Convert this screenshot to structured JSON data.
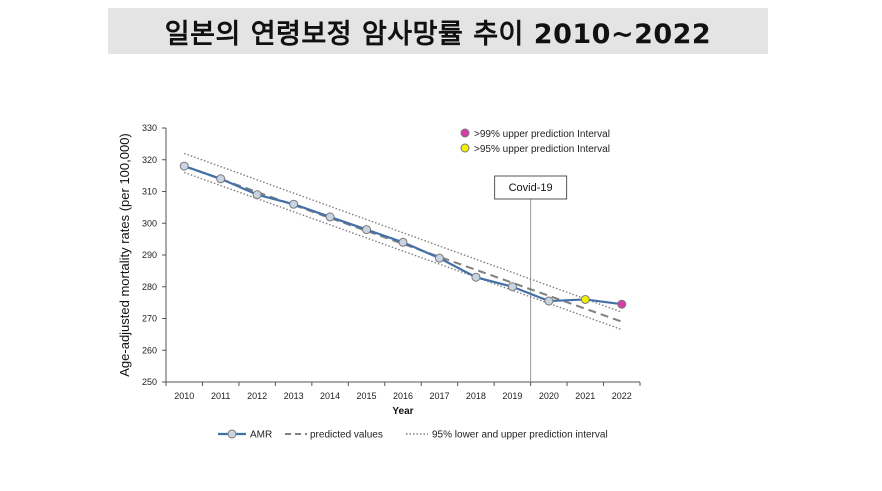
{
  "title": "일본의 연령보정 암사망률 추이 2010~2022",
  "chart_data": {
    "type": "line",
    "xlabel": "Year",
    "ylabel": "Age-adjusted mortality rates (per 100,000)",
    "x": [
      2010,
      2011,
      2012,
      2013,
      2014,
      2015,
      2016,
      2017,
      2018,
      2019,
      2020,
      2021,
      2022
    ],
    "ylim": [
      250,
      330
    ],
    "yticks": [
      250,
      260,
      270,
      280,
      290,
      300,
      310,
      320,
      330
    ],
    "series": [
      {
        "name": "AMR",
        "x": [
          2010,
          2011,
          2012,
          2013,
          2014,
          2015,
          2016,
          2017,
          2018,
          2019,
          2020,
          2021,
          2022
        ],
        "values": [
          318,
          314,
          309,
          306,
          302,
          298,
          294,
          289,
          283,
          280,
          275.5,
          276,
          274.5
        ],
        "color": "#4470a8"
      },
      {
        "name": "predicted values",
        "x": [
          2010,
          2022
        ],
        "values": [
          318,
          269
        ],
        "color": "#808080"
      },
      {
        "name": "95% upper prediction interval",
        "x": [
          2010,
          2022
        ],
        "values": [
          322,
          272
        ],
        "color": "#808080"
      },
      {
        "name": "95% lower prediction interval",
        "x": [
          2010,
          2022
        ],
        "values": [
          316,
          266.5
        ],
        "color": "#808080"
      }
    ],
    "highlights": [
      {
        "x": 2021,
        "value": 276,
        "color": "#f2f200",
        "label": ">95% upper prediction Interval"
      },
      {
        "x": 2022,
        "value": 274.5,
        "color": "#d63fa8",
        "label": ">99% upper prediction Interval"
      }
    ],
    "annotation": {
      "x": 2019.5,
      "label": "Covid-19"
    },
    "legend_bottom": [
      "AMR",
      "predicted values",
      "95% lower and upper prediction interval"
    ],
    "legend_top": [
      ">99% upper prediction Interval",
      ">95% upper prediction Interval"
    ]
  }
}
